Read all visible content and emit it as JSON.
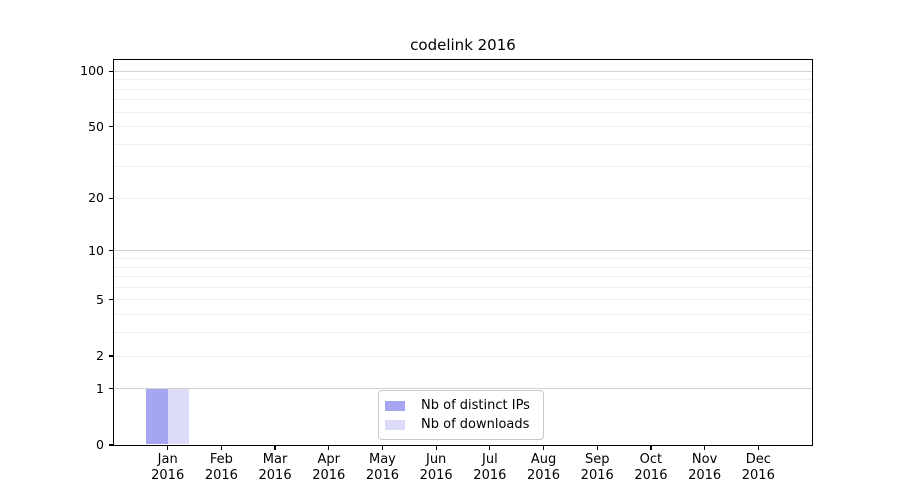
{
  "chart_data": {
    "type": "bar",
    "title": "codelink 2016",
    "xlabel": "",
    "ylabel": "",
    "categories": [
      "Jan 2016",
      "Feb 2016",
      "Mar 2016",
      "Apr 2016",
      "May 2016",
      "Jun 2016",
      "Jul 2016",
      "Aug 2016",
      "Sep 2016",
      "Oct 2016",
      "Nov 2016",
      "Dec 2016"
    ],
    "series": [
      {
        "name": "Nb of distinct IPs",
        "color": "#a5a5f0",
        "values": [
          1,
          0,
          0,
          0,
          0,
          0,
          0,
          0,
          0,
          0,
          0,
          0
        ]
      },
      {
        "name": "Nb of downloads",
        "color": "#dcdcf8",
        "values": [
          1,
          0,
          0,
          0,
          0,
          0,
          0,
          0,
          0,
          0,
          0,
          0
        ]
      }
    ],
    "yscale": "log1p",
    "ylim": [
      0,
      115
    ],
    "yticks": [
      0,
      1,
      2,
      5,
      10,
      20,
      50,
      100
    ],
    "major_gridlines": [
      1,
      10,
      100
    ],
    "minor_gridlines": [
      2,
      3,
      4,
      5,
      6,
      7,
      8,
      9,
      20,
      30,
      40,
      50,
      60,
      70,
      80,
      90
    ],
    "grid": "on",
    "legend_position": "lower center"
  },
  "colors": {
    "axis": "#000000",
    "major_grid": "#d2d2d2",
    "minor_grid": "#efefef",
    "legend_border": "#c9c9c9",
    "text": "#000000",
    "background": "#ffffff"
  }
}
